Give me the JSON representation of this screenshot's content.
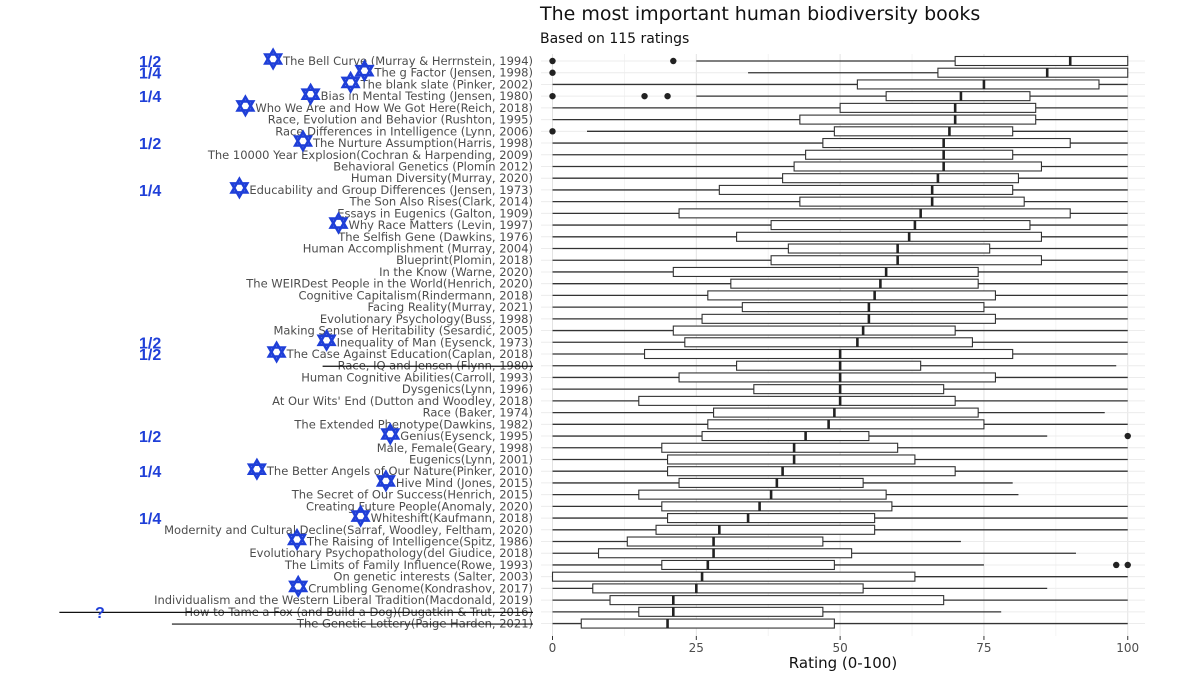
{
  "chart_data": {
    "type": "boxplot",
    "orientation": "horizontal",
    "title": "The most important human biodiversity books",
    "subtitle": "Based on 115 ratings",
    "xlabel": "Rating (0-100)",
    "ylabel": "",
    "xlim": [
      -2,
      103
    ],
    "xticks": [
      0,
      25,
      50,
      75,
      100
    ],
    "grid": true,
    "categories": [
      {
        "label": "The Bell Curve (Murray & Herrnstein, 1994)",
        "min": 25,
        "q1": 70,
        "median": 90,
        "q3": 100,
        "max": 100,
        "outliers": [
          0,
          21
        ],
        "star": true,
        "mark": "1/2",
        "strike": false
      },
      {
        "label": "The g Factor (Jensen, 1998)",
        "min": 34,
        "q1": 67,
        "median": 86,
        "q3": 100,
        "max": 100,
        "outliers": [
          0
        ],
        "star": true,
        "mark": "1/4",
        "strike": false
      },
      {
        "label": "The blank slate (Pinker, 2002)",
        "min": 0,
        "q1": 53,
        "median": 75,
        "q3": 95,
        "max": 100,
        "outliers": [],
        "star": true,
        "mark": "",
        "strike": false
      },
      {
        "label": "Bias in Mental Testing (Jensen, 1980)",
        "min": 25,
        "q1": 58,
        "median": 71,
        "q3": 83,
        "max": 100,
        "outliers": [
          0,
          16,
          20
        ],
        "star": true,
        "mark": "1/4",
        "strike": false
      },
      {
        "label": "Who We Are and How We Got Here(Reich, 2018)",
        "min": 0,
        "q1": 50,
        "median": 70,
        "q3": 84,
        "max": 100,
        "outliers": [],
        "star": true,
        "mark": "",
        "strike": false
      },
      {
        "label": "Race, Evolution and Behavior (Rushton, 1995)",
        "min": 0,
        "q1": 43,
        "median": 70,
        "q3": 84,
        "max": 100,
        "outliers": [],
        "star": false,
        "mark": "",
        "strike": false
      },
      {
        "label": "Race Differences in Intelligence (Lynn, 2006)",
        "min": 6,
        "q1": 49,
        "median": 69,
        "q3": 80,
        "max": 100,
        "outliers": [
          0
        ],
        "star": false,
        "mark": "",
        "strike": false
      },
      {
        "label": "The Nurture Assumption(Harris, 1998)",
        "min": 0,
        "q1": 47,
        "median": 68,
        "q3": 90,
        "max": 100,
        "outliers": [],
        "star": true,
        "mark": "1/2",
        "strike": false
      },
      {
        "label": "The 10000 Year Explosion(Cochran & Harpending, 2009)",
        "min": 0,
        "q1": 44,
        "median": 68,
        "q3": 80,
        "max": 100,
        "outliers": [],
        "star": false,
        "mark": "",
        "strike": false
      },
      {
        "label": "Behavioral Genetics (Plomin 2012)",
        "min": 0,
        "q1": 42,
        "median": 68,
        "q3": 85,
        "max": 100,
        "outliers": [],
        "star": false,
        "mark": "",
        "strike": false
      },
      {
        "label": "Human Diversity(Murray, 2020)",
        "min": 0,
        "q1": 40,
        "median": 67,
        "q3": 81,
        "max": 100,
        "outliers": [],
        "star": false,
        "mark": "",
        "strike": false
      },
      {
        "label": "Educability and Group Differences (Jensen, 1973)",
        "min": 0,
        "q1": 29,
        "median": 66,
        "q3": 80,
        "max": 100,
        "outliers": [],
        "star": true,
        "mark": "1/4",
        "strike": false
      },
      {
        "label": "The Son Also Rises(Clark, 2014)",
        "min": 0,
        "q1": 43,
        "median": 66,
        "q3": 82,
        "max": 100,
        "outliers": [],
        "star": false,
        "mark": "",
        "strike": false
      },
      {
        "label": "Essays in Eugenics (Galton, 1909)",
        "min": 0,
        "q1": 22,
        "median": 64,
        "q3": 90,
        "max": 100,
        "outliers": [],
        "star": false,
        "mark": "",
        "strike": false
      },
      {
        "label": "Why Race Matters (Levin, 1997)",
        "min": 0,
        "q1": 38,
        "median": 63,
        "q3": 83,
        "max": 100,
        "outliers": [],
        "star": true,
        "mark": "",
        "strike": false
      },
      {
        "label": "The Selfish Gene (Dawkins, 1976)",
        "min": 0,
        "q1": 32,
        "median": 62,
        "q3": 85,
        "max": 100,
        "outliers": [],
        "star": false,
        "mark": "",
        "strike": false
      },
      {
        "label": "Human Accomplishment (Murray, 2004)",
        "min": 0,
        "q1": 41,
        "median": 60,
        "q3": 76,
        "max": 100,
        "outliers": [],
        "star": false,
        "mark": "",
        "strike": false
      },
      {
        "label": "Blueprint(Plomin, 2018)",
        "min": 0,
        "q1": 38,
        "median": 60,
        "q3": 85,
        "max": 100,
        "outliers": [],
        "star": false,
        "mark": "",
        "strike": false
      },
      {
        "label": "In the Know (Warne, 2020)",
        "min": 0,
        "q1": 21,
        "median": 58,
        "q3": 74,
        "max": 100,
        "outliers": [],
        "star": false,
        "mark": "",
        "strike": false
      },
      {
        "label": "The WEIRDest People in the World(Henrich, 2020)",
        "min": 0,
        "q1": 31,
        "median": 57,
        "q3": 74,
        "max": 100,
        "outliers": [],
        "star": false,
        "mark": "",
        "strike": false
      },
      {
        "label": "Cognitive Capitalism(Rindermann, 2018)",
        "min": 0,
        "q1": 27,
        "median": 56,
        "q3": 77,
        "max": 100,
        "outliers": [],
        "star": false,
        "mark": "",
        "strike": false
      },
      {
        "label": "Facing Reality(Murray, 2021)",
        "min": 0,
        "q1": 33,
        "median": 55,
        "q3": 75,
        "max": 100,
        "outliers": [],
        "star": false,
        "mark": "",
        "strike": false
      },
      {
        "label": "Evolutionary Psychology(Buss, 1998)",
        "min": 0,
        "q1": 26,
        "median": 55,
        "q3": 77,
        "max": 100,
        "outliers": [],
        "star": false,
        "mark": "",
        "strike": false
      },
      {
        "label": "Making Sense of Heritability (Sesardić, 2005)",
        "min": 0,
        "q1": 21,
        "median": 54,
        "q3": 70,
        "max": 100,
        "outliers": [],
        "star": false,
        "mark": "",
        "strike": false
      },
      {
        "label": "Inequality of Man (Eysenck, 1973)",
        "min": 0,
        "q1": 23,
        "median": 53,
        "q3": 73,
        "max": 100,
        "outliers": [],
        "star": true,
        "mark": "1/2",
        "strike": false
      },
      {
        "label": "The Case Against Education(Caplan, 2018)",
        "min": 0,
        "q1": 16,
        "median": 50,
        "q3": 80,
        "max": 100,
        "outliers": [],
        "star": true,
        "mark": "1/2",
        "strike": false
      },
      {
        "label": "Race, IQ and Jensen (Flynn, 1980)",
        "min": 0,
        "q1": 32,
        "median": 50,
        "q3": 64,
        "max": 98,
        "outliers": [],
        "star": false,
        "mark": "",
        "strike": true
      },
      {
        "label": "Human Cognitive Abilities(Carroll, 1993)",
        "min": 0,
        "q1": 22,
        "median": 50,
        "q3": 77,
        "max": 100,
        "outliers": [],
        "star": false,
        "mark": "",
        "strike": false
      },
      {
        "label": "Dysgenics(Lynn, 1996)",
        "min": 0,
        "q1": 35,
        "median": 50,
        "q3": 68,
        "max": 100,
        "outliers": [],
        "star": false,
        "mark": "",
        "strike": false
      },
      {
        "label": "At Our Wits' End (Dutton and Woodley, 2018)",
        "min": 0,
        "q1": 15,
        "median": 50,
        "q3": 70,
        "max": 100,
        "outliers": [],
        "star": false,
        "mark": "",
        "strike": false
      },
      {
        "label": "Race (Baker, 1974)",
        "min": 0,
        "q1": 28,
        "median": 49,
        "q3": 74,
        "max": 96,
        "outliers": [],
        "star": false,
        "mark": "",
        "strike": false
      },
      {
        "label": "The Extended Phenotype(Dawkins, 1982)",
        "min": 0,
        "q1": 27,
        "median": 48,
        "q3": 75,
        "max": 100,
        "outliers": [],
        "star": false,
        "mark": "",
        "strike": false
      },
      {
        "label": "Genius(Eysenck, 1995)",
        "min": 0,
        "q1": 26,
        "median": 44,
        "q3": 55,
        "max": 86,
        "outliers": [
          100
        ],
        "star": true,
        "mark": "1/2",
        "strike": false
      },
      {
        "label": "Male, Female(Geary, 1998)",
        "min": 0,
        "q1": 19,
        "median": 42,
        "q3": 60,
        "max": 100,
        "outliers": [],
        "star": false,
        "mark": "",
        "strike": false
      },
      {
        "label": "Eugenics(Lynn, 2001)",
        "min": 0,
        "q1": 20,
        "median": 42,
        "q3": 63,
        "max": 100,
        "outliers": [],
        "star": false,
        "mark": "",
        "strike": false
      },
      {
        "label": "The Better Angels of Our Nature(Pinker, 2010)",
        "min": 0,
        "q1": 20,
        "median": 40,
        "q3": 70,
        "max": 100,
        "outliers": [],
        "star": true,
        "mark": "1/4",
        "strike": false
      },
      {
        "label": "Hive Mind (Jones, 2015)",
        "min": 0,
        "q1": 22,
        "median": 39,
        "q3": 54,
        "max": 80,
        "outliers": [],
        "star": true,
        "mark": "",
        "strike": false
      },
      {
        "label": "The Secret of Our Success(Henrich, 2015)",
        "min": 0,
        "q1": 15,
        "median": 38,
        "q3": 58,
        "max": 81,
        "outliers": [],
        "star": false,
        "mark": "",
        "strike": false
      },
      {
        "label": "Creating Future People(Anomaly, 2020)",
        "min": 0,
        "q1": 19,
        "median": 36,
        "q3": 59,
        "max": 100,
        "outliers": [],
        "star": false,
        "mark": "",
        "strike": false
      },
      {
        "label": "Whiteshift(Kaufmann, 2018)",
        "min": 0,
        "q1": 20,
        "median": 34,
        "q3": 56,
        "max": 100,
        "outliers": [],
        "star": true,
        "mark": "1/4",
        "strike": false
      },
      {
        "label": "Modernity and Cultural Decline(Sarraf, Woodley, Feltham, 2020)",
        "min": 0,
        "q1": 18,
        "median": 29,
        "q3": 56,
        "max": 100,
        "outliers": [],
        "star": false,
        "mark": "",
        "strike": false
      },
      {
        "label": "The Raising of Intelligence(Spitz, 1986)",
        "min": 0,
        "q1": 13,
        "median": 28,
        "q3": 47,
        "max": 71,
        "outliers": [],
        "star": true,
        "mark": "",
        "strike": false
      },
      {
        "label": "Evolutionary Psychopathology(del Giudice, 2018)",
        "min": 0,
        "q1": 8,
        "median": 28,
        "q3": 52,
        "max": 91,
        "outliers": [],
        "star": false,
        "mark": "",
        "strike": false
      },
      {
        "label": "The Limits of Family Influence(Rowe, 1993)",
        "min": 0,
        "q1": 19,
        "median": 27,
        "q3": 49,
        "max": 75,
        "outliers": [
          98,
          100
        ],
        "star": false,
        "mark": "",
        "strike": false
      },
      {
        "label": "On genetic interests (Salter, 2003)",
        "min": 0,
        "q1": 0,
        "median": 26,
        "q3": 63,
        "max": 100,
        "outliers": [],
        "star": false,
        "mark": "",
        "strike": false
      },
      {
        "label": "Crumbling Genome(Kondrashov, 2017)",
        "min": 0,
        "q1": 7,
        "median": 25,
        "q3": 54,
        "max": 86,
        "outliers": [],
        "star": true,
        "mark": "",
        "strike": false
      },
      {
        "label": "Individualism and the Western Liberal Tradition(Macdonald, 2019)",
        "min": 0,
        "q1": 10,
        "median": 21,
        "q3": 68,
        "max": 100,
        "outliers": [],
        "star": false,
        "mark": "",
        "strike": false
      },
      {
        "label": "How to Tame a Fox (and Build a Dog)(Dugatkin & Trut, 2016)",
        "min": 0,
        "q1": 15,
        "median": 21,
        "q3": 47,
        "max": 78,
        "outliers": [],
        "star": false,
        "mark": "?",
        "strike": true
      },
      {
        "label": "The Genetic Lottery(Paige Harden, 2021)",
        "min": 0,
        "q1": 5,
        "median": 20,
        "q3": 49,
        "max": 100,
        "outliers": [],
        "star": false,
        "mark": "",
        "strike": true
      }
    ]
  }
}
